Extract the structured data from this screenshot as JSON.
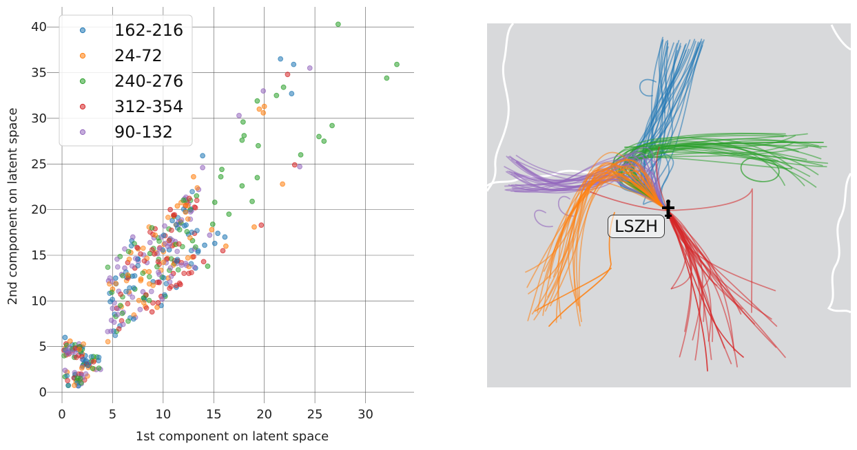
{
  "chart_data": [
    {
      "type": "scatter",
      "title": "",
      "xlabel": "1st component on latent space",
      "ylabel": "2nd component on latent space",
      "xlim": [
        -1.5,
        34.8
      ],
      "ylim": [
        -1.2,
        42.2
      ],
      "xticks": [
        "0",
        "5",
        "10",
        "15",
        "20",
        "25",
        "30"
      ],
      "yticks": [
        "0",
        "5",
        "10",
        "15",
        "20",
        "25",
        "30",
        "35",
        "40"
      ],
      "grid": true,
      "legend_position": "top-left",
      "series": [
        {
          "name": "162-216",
          "color": "#1f77b4",
          "values": [
            [
              0.3,
              6.0
            ],
            [
              1.0,
              5.2
            ],
            [
              1.5,
              4.7
            ],
            [
              2.3,
              4.0
            ],
            [
              1.2,
              1.6
            ],
            [
              7.5,
              14.6
            ],
            [
              9.0,
              12.1
            ],
            [
              10.6,
              15.6
            ],
            [
              12.5,
              17.3
            ],
            [
              13.2,
              13.6
            ],
            [
              14.1,
              16.1
            ],
            [
              15.1,
              16.3
            ],
            [
              8.1,
              10.3
            ],
            [
              6.9,
              16.6
            ],
            [
              10.9,
              18.8
            ],
            [
              13.9,
              25.9
            ],
            [
              15.4,
              17.4
            ],
            [
              16.1,
              17.0
            ],
            [
              21.6,
              36.5
            ],
            [
              22.9,
              35.9
            ],
            [
              22.7,
              32.7
            ],
            [
              11.3,
              11.5
            ],
            [
              9.8,
              9.5
            ],
            [
              5.3,
              12.5
            ],
            [
              12.2,
              19.8
            ]
          ]
        },
        {
          "name": "24-72",
          "color": "#ff7f0e",
          "values": [
            [
              0.8,
              5.6
            ],
            [
              2.0,
              4.2
            ],
            [
              3.2,
              3.5
            ],
            [
              0.5,
              2.2
            ],
            [
              6.8,
              15.3
            ],
            [
              8.6,
              13.2
            ],
            [
              10.1,
              16.2
            ],
            [
              11.7,
              18.7
            ],
            [
              12.9,
              14.8
            ],
            [
              14.8,
              17.8
            ],
            [
              19.0,
              18.1
            ],
            [
              13.0,
              23.6
            ],
            [
              19.5,
              31.0
            ],
            [
              19.9,
              30.6
            ],
            [
              21.8,
              22.8
            ],
            [
              20.0,
              31.3
            ],
            [
              5.0,
              11.3
            ],
            [
              9.4,
              9.3
            ],
            [
              11.4,
              20.4
            ],
            [
              7.8,
              12.4
            ],
            [
              16.2,
              16.0
            ],
            [
              10.5,
              12.5
            ]
          ]
        },
        {
          "name": "240-276",
          "color": "#2ca02c",
          "values": [
            [
              0.3,
              1.7
            ],
            [
              1.3,
              1.9
            ],
            [
              2.0,
              4.7
            ],
            [
              3.1,
              3.9
            ],
            [
              7.2,
              11.3
            ],
            [
              8.7,
              15.2
            ],
            [
              9.9,
              12.6
            ],
            [
              11.1,
              14.1
            ],
            [
              12.9,
              16.6
            ],
            [
              14.4,
              13.8
            ],
            [
              15.1,
              20.8
            ],
            [
              15.8,
              24.4
            ],
            [
              15.7,
              23.6
            ],
            [
              17.8,
              22.6
            ],
            [
              18.0,
              28.1
            ],
            [
              17.8,
              27.6
            ],
            [
              17.9,
              29.6
            ],
            [
              19.4,
              27.0
            ],
            [
              19.3,
              31.9
            ],
            [
              19.3,
              23.5
            ],
            [
              18.8,
              20.9
            ],
            [
              21.2,
              32.5
            ],
            [
              21.9,
              33.4
            ],
            [
              23.6,
              26.0
            ],
            [
              25.4,
              28.0
            ],
            [
              25.9,
              27.5
            ],
            [
              26.7,
              29.2
            ],
            [
              27.3,
              40.3
            ],
            [
              32.1,
              34.4
            ],
            [
              33.1,
              35.9
            ],
            [
              14.9,
              18.4
            ],
            [
              16.5,
              19.5
            ],
            [
              13.3,
              21.5
            ],
            [
              10.2,
              10.5
            ],
            [
              6.6,
              12.7
            ]
          ]
        },
        {
          "name": "312-354",
          "color": "#d62728",
          "values": [
            [
              0.4,
              5.3
            ],
            [
              1.8,
              5.0
            ],
            [
              2.7,
              2.9
            ],
            [
              1.7,
              1.3
            ],
            [
              0.2,
              4.6
            ],
            [
              5.4,
              9.2
            ],
            [
              8.9,
              8.8
            ],
            [
              9.8,
              10.5
            ],
            [
              11.0,
              13.0
            ],
            [
              10.7,
              20.0
            ],
            [
              12.2,
              20.4
            ],
            [
              13.1,
              17.4
            ],
            [
              14.0,
              14.3
            ],
            [
              15.9,
              15.5
            ],
            [
              9.2,
              17.9
            ],
            [
              7.2,
              13.6
            ],
            [
              22.3,
              34.8
            ],
            [
              23.0,
              24.9
            ],
            [
              19.7,
              18.3
            ],
            [
              11.7,
              11.8
            ],
            [
              9.5,
              9.8
            ],
            [
              6.5,
              14.2
            ]
          ]
        },
        {
          "name": "90-132",
          "color": "#9467bd",
          "values": [
            [
              0.3,
              2.4
            ],
            [
              1.4,
              4.6
            ],
            [
              2.8,
              3.3
            ],
            [
              3.8,
              2.5
            ],
            [
              4.6,
              12.2
            ],
            [
              6.2,
              13.6
            ],
            [
              7.5,
              15.8
            ],
            [
              8.4,
              14.2
            ],
            [
              9.1,
              16.9
            ],
            [
              9.6,
              12.1
            ],
            [
              10.4,
              14.6
            ],
            [
              8.0,
              11.0
            ],
            [
              11.2,
              16.5
            ],
            [
              12.8,
              19.9
            ],
            [
              13.9,
              24.6
            ],
            [
              13.5,
              22.2
            ],
            [
              17.5,
              30.3
            ],
            [
              19.9,
              33.0
            ],
            [
              23.5,
              24.7
            ],
            [
              24.5,
              35.5
            ],
            [
              14.6,
              17.2
            ],
            [
              5.9,
              12.9
            ],
            [
              7.0,
              17.0
            ],
            [
              9.9,
              10.2
            ],
            [
              12.3,
              13.9
            ]
          ]
        }
      ]
    }
  ],
  "map": {
    "airport_label": "LSZH",
    "background_color": "#d8d9db",
    "airport_icon": "airplane-icon"
  }
}
